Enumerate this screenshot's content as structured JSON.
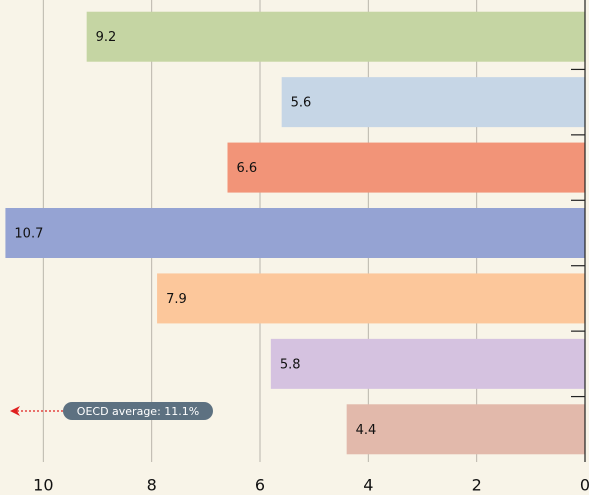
{
  "chart_data": {
    "type": "bar",
    "orientation": "horizontal",
    "values": [
      9.2,
      5.6,
      6.6,
      10.7,
      7.9,
      5.8,
      4.4
    ],
    "colors": [
      "#c5d5a3",
      "#c6d6e6",
      "#f29478",
      "#95a3d3",
      "#fcc79b",
      "#d5c2e0",
      "#e2b9ab"
    ],
    "xlim": [
      0,
      10.8
    ],
    "xticks": [
      10,
      8,
      6,
      4,
      2,
      0
    ],
    "x_reversed": true,
    "grid": true,
    "annotation": "OECD average: 11.1%"
  }
}
